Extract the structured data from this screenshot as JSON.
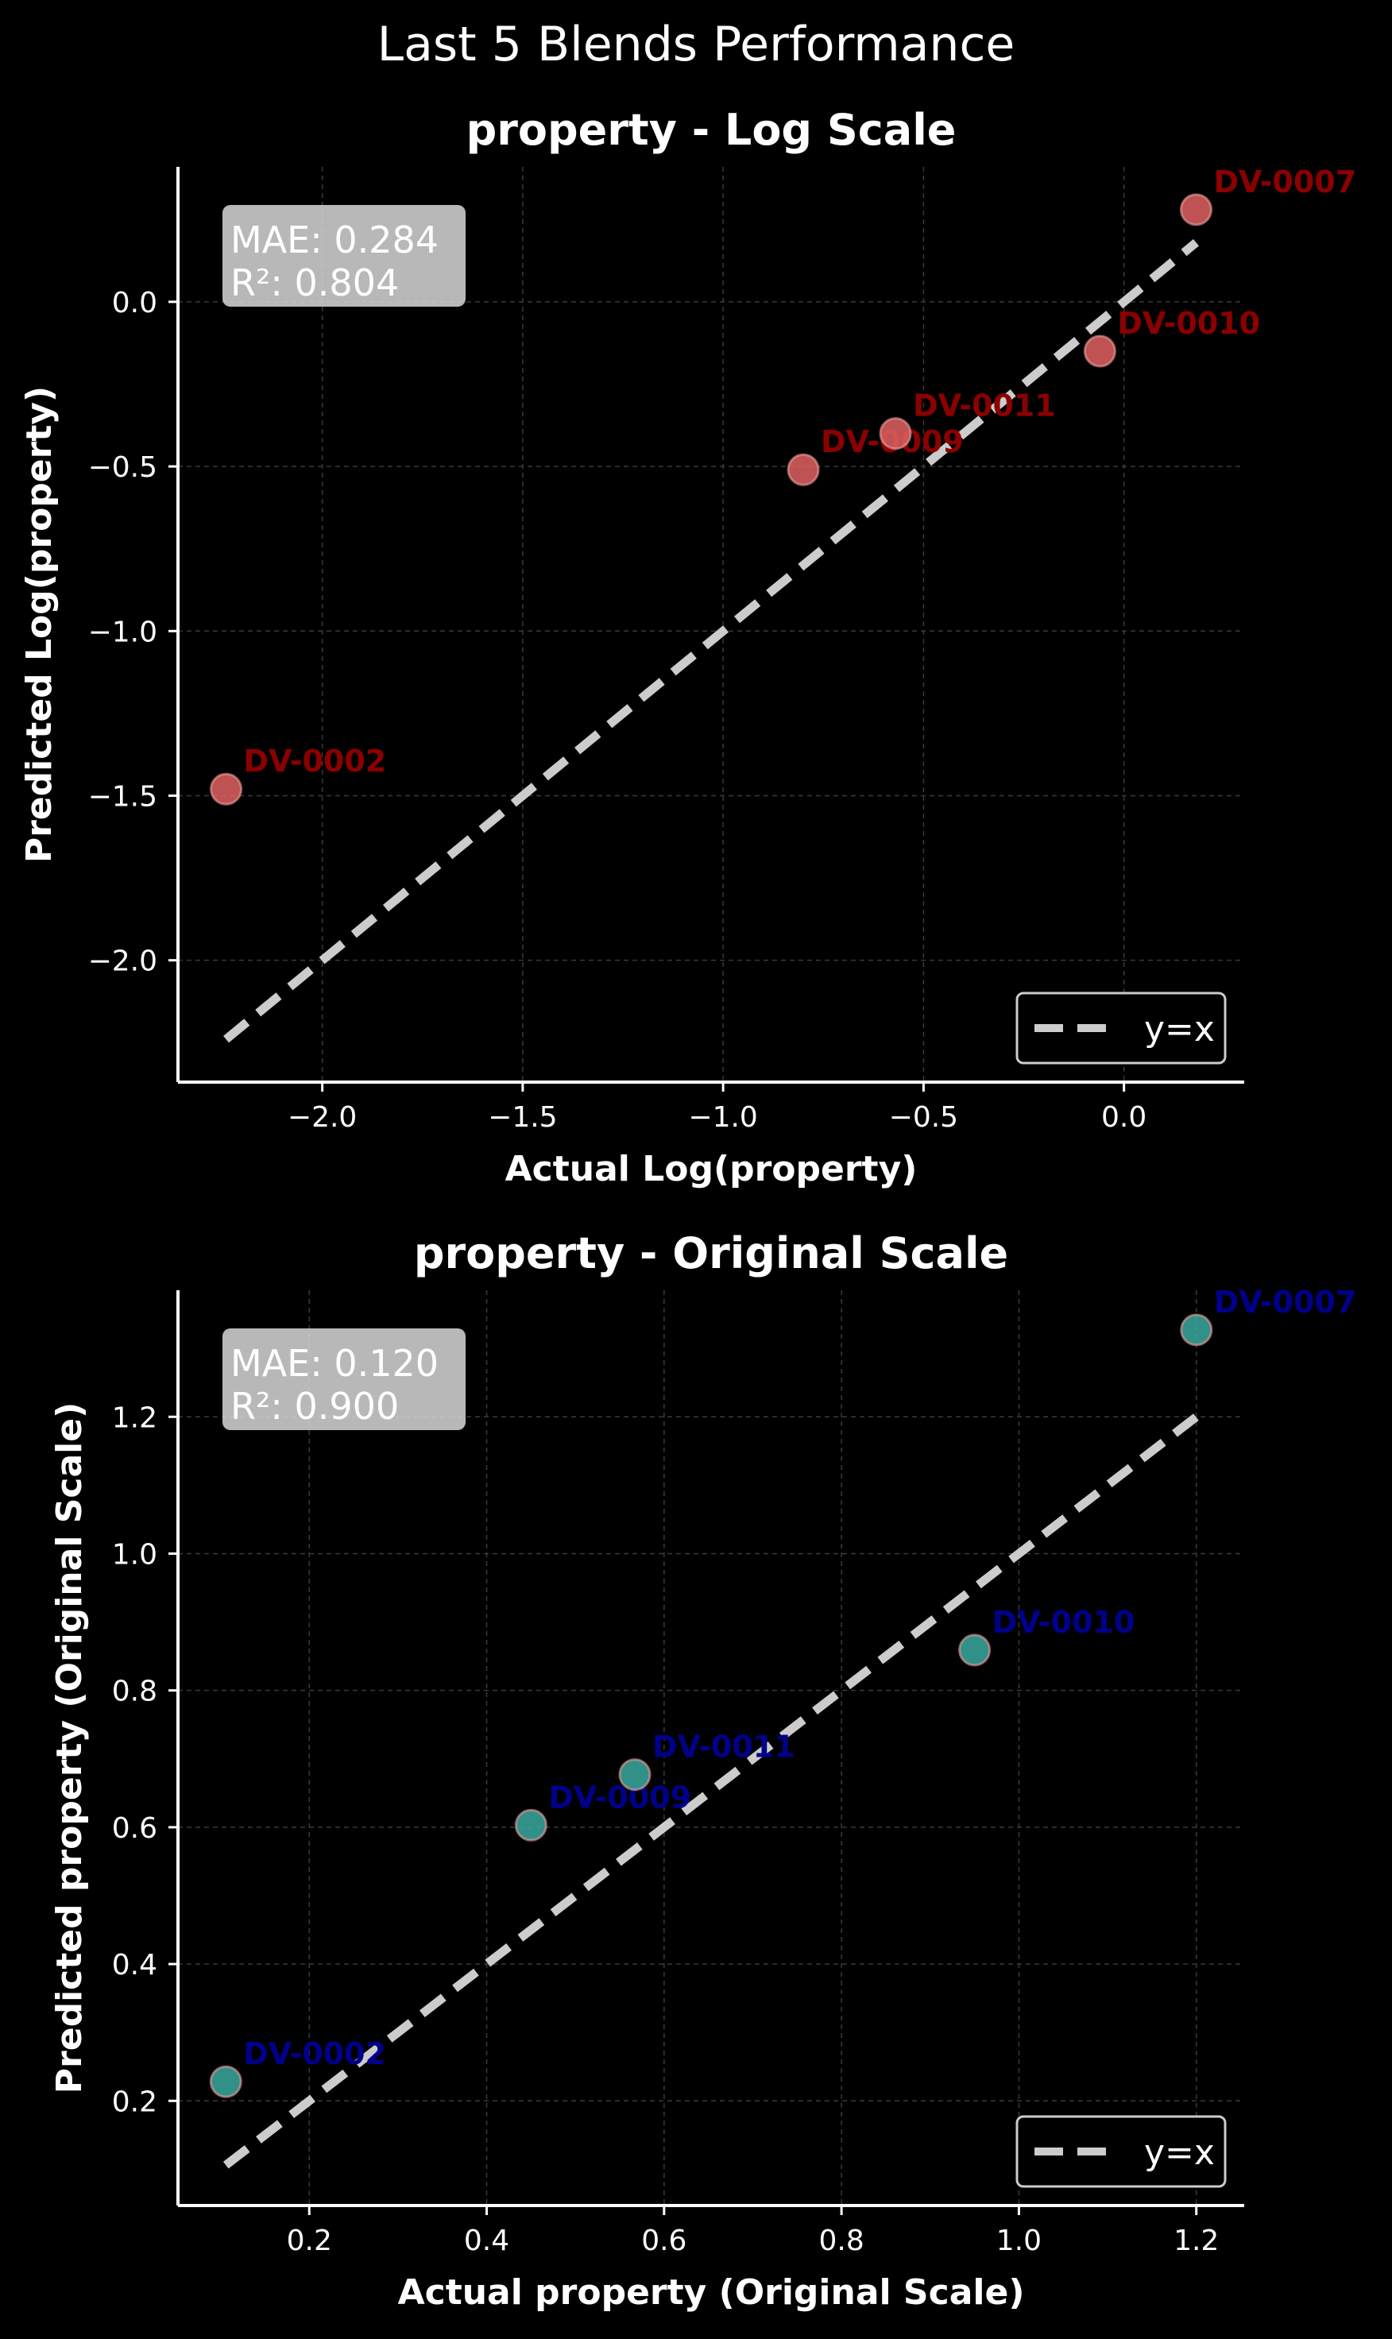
{
  "figure_title": "Last 5 Blends Performance",
  "chart_data": [
    {
      "type": "scatter",
      "title": "property - Log Scale",
      "xlabel": "Actual Log(property)",
      "ylabel": "Predicted Log(property)",
      "xlim": [
        -2.36,
        0.3
      ],
      "ylim": [
        -2.37,
        0.41
      ],
      "xticks": [
        -2.0,
        -1.5,
        -1.0,
        -0.5,
        0.0
      ],
      "xtick_labels": [
        "−2.0",
        "−1.5",
        "−1.0",
        "−0.5",
        "0.0"
      ],
      "yticks": [
        -2.0,
        -1.5,
        -1.0,
        -0.5,
        0.0
      ],
      "ytick_labels": [
        "−2.0",
        "−1.5",
        "−1.0",
        "−0.5",
        "0.0"
      ],
      "grid": true,
      "stats": {
        "mae": "MAE: 0.284",
        "r2": "R²: 0.804"
      },
      "legend": {
        "label": "y=x",
        "position": "lower-right"
      },
      "reference_line": {
        "from": [
          -2.24,
          -2.24
        ],
        "to": [
          0.18,
          0.18
        ]
      },
      "point_color": "#e06060",
      "label_color": "#8b0000",
      "points": [
        {
          "label": "DV-0002",
          "x": -2.24,
          "y": -1.48
        },
        {
          "label": "DV-0009",
          "x": -0.8,
          "y": -0.51
        },
        {
          "label": "DV-0011",
          "x": -0.57,
          "y": -0.4
        },
        {
          "label": "DV-0010",
          "x": -0.06,
          "y": -0.15
        },
        {
          "label": "DV-0007",
          "x": 0.18,
          "y": 0.28
        }
      ]
    },
    {
      "type": "scatter",
      "title": "property - Original Scale",
      "xlabel": "Actual property (Original Scale)",
      "ylabel": "Predicted property (Original Scale)",
      "xlim": [
        0.052,
        1.254
      ],
      "ylim": [
        0.047,
        1.385
      ],
      "xticks": [
        0.2,
        0.4,
        0.6,
        0.8,
        1.0,
        1.2
      ],
      "xtick_labels": [
        "0.2",
        "0.4",
        "0.6",
        "0.8",
        "1.0",
        "1.2"
      ],
      "yticks": [
        0.2,
        0.4,
        0.6,
        0.8,
        1.0,
        1.2
      ],
      "ytick_labels": [
        "0.2",
        "0.4",
        "0.6",
        "0.8",
        "1.0",
        "1.2"
      ],
      "grid": true,
      "stats": {
        "mae": "MAE: 0.120",
        "r2": "R²: 0.900"
      },
      "legend": {
        "label": "y=x",
        "position": "lower-right"
      },
      "reference_line": {
        "from": [
          0.106,
          0.106
        ],
        "to": [
          1.2,
          1.2
        ]
      },
      "point_color": "#3aa99f",
      "label_color": "#00008b",
      "points": [
        {
          "label": "DV-0002",
          "x": 0.106,
          "y": 0.228
        },
        {
          "label": "DV-0009",
          "x": 0.45,
          "y": 0.603
        },
        {
          "label": "DV-0011",
          "x": 0.567,
          "y": 0.677
        },
        {
          "label": "DV-0010",
          "x": 0.95,
          "y": 0.859
        },
        {
          "label": "DV-0007",
          "x": 1.2,
          "y": 1.327
        }
      ]
    }
  ]
}
